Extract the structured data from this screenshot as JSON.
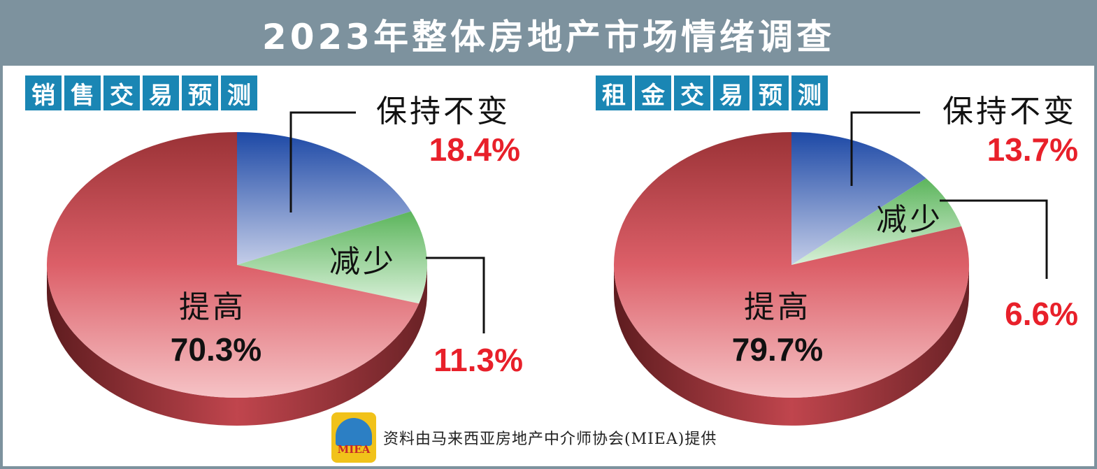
{
  "title": "2023年整体房地产市场情绪调查",
  "chart_data": [
    {
      "type": "pie",
      "title": "销售交易预测",
      "slices": [
        {
          "label": "保持不变",
          "value": 18.4,
          "display": "18.4%",
          "color": "#3a58ad"
        },
        {
          "label": "减少",
          "value": 11.3,
          "display": "11.3%",
          "color": "#7cc67c"
        },
        {
          "label": "提高",
          "value": 70.3,
          "display": "70.3%",
          "color": "#dc5f68"
        }
      ]
    },
    {
      "type": "pie",
      "title": "租金交易预测",
      "slices": [
        {
          "label": "保持不变",
          "value": 13.7,
          "display": "13.7%",
          "color": "#3a58ad"
        },
        {
          "label": "减少",
          "value": 6.6,
          "display": "6.6%",
          "color": "#7cc67c"
        },
        {
          "label": "提高",
          "value": 79.7,
          "display": "79.7%",
          "color": "#dc5f68"
        }
      ]
    }
  ],
  "footer": {
    "logo_text": "MIEA",
    "source": "资料由马来西亚房地产中介师协会(MIEA)提供"
  }
}
